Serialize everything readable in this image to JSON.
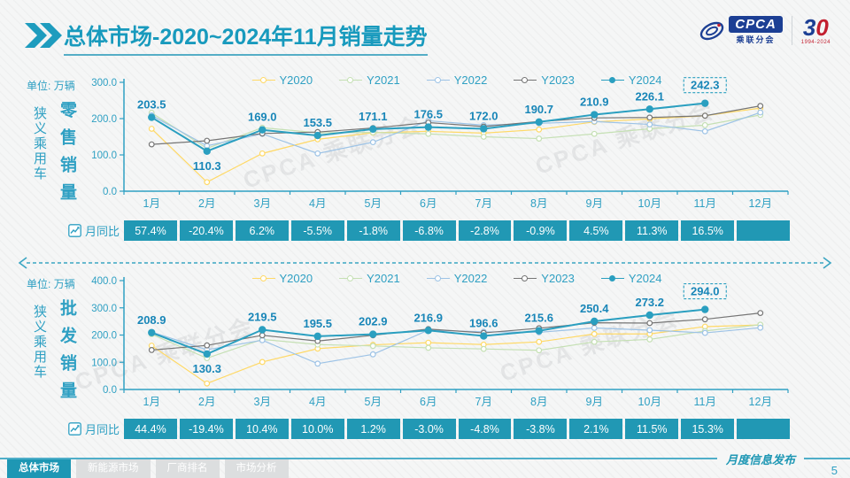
{
  "header": {
    "title": {
      "bold": "总体市场",
      "rest": "-2020~2024年11月销量走势"
    },
    "cpca_logo": {
      "text": "CPCA",
      "subtext": "乘联分会"
    },
    "anniversary_logo": {
      "number_blue": "3",
      "number_red": "0",
      "years": "1994-2024"
    }
  },
  "colors": {
    "primary": "#189ABD",
    "axis": "#2FA0C3",
    "data_label": "#1886B8",
    "yoy_bg": "#2198B4",
    "series": {
      "Y2020": "#FFD966",
      "Y2021": "#C5E0B4",
      "Y2022": "#9DC3E6",
      "Y2023": "#757575",
      "Y2024": "#2A9FC0"
    }
  },
  "chart_data": [
    {
      "type": "line",
      "title": "零售销量",
      "group_label": "狭义乘用车",
      "unit_label": "单位:",
      "unit_value": "万辆",
      "categories": [
        "1月",
        "2月",
        "3月",
        "4月",
        "5月",
        "6月",
        "7月",
        "8月",
        "9月",
        "10月",
        "11月",
        "12月"
      ],
      "ylim": [
        0,
        300
      ],
      "y_tick_step": 100,
      "grid": false,
      "legend_position": "top",
      "series": [
        {
          "name": "Y2020",
          "values": [
            172,
            25,
            104,
            143,
            161,
            165,
            160,
            170,
            191,
            199,
            208,
            229
          ]
        },
        {
          "name": "Y2021",
          "values": [
            216,
            118,
            175,
            161,
            162,
            158,
            150,
            145,
            158,
            172,
            182,
            210
          ]
        },
        {
          "name": "Y2022",
          "values": [
            209,
            125,
            158,
            104,
            135,
            194,
            182,
            187,
            192,
            184,
            165,
            217
          ]
        },
        {
          "name": "Y2023",
          "values": [
            129,
            139,
            159,
            163,
            174,
            189,
            178,
            192,
            202,
            203,
            208,
            235
          ]
        },
        {
          "name": "Y2024",
          "values": [
            203.5,
            110.3,
            169.0,
            153.5,
            171.1,
            176.5,
            172.0,
            190.7,
            210.9,
            226.1,
            242.3
          ],
          "labeled": true,
          "last_label_boxed": true
        }
      ],
      "yoy": {
        "label": "月同比",
        "values": [
          "57.4%",
          "-20.4%",
          "6.2%",
          "-5.5%",
          "-1.8%",
          "-6.8%",
          "-2.8%",
          "-0.9%",
          "4.5%",
          "11.3%",
          "16.5%",
          ""
        ]
      }
    },
    {
      "type": "line",
      "title": "批发销量",
      "group_label": "狭义乘用车",
      "unit_label": "单位:",
      "unit_value": "万辆",
      "categories": [
        "1月",
        "2月",
        "3月",
        "4月",
        "5月",
        "6月",
        "7月",
        "8月",
        "9月",
        "10月",
        "11月",
        "12月"
      ],
      "ylim": [
        0,
        400
      ],
      "y_tick_step": 100,
      "grid": false,
      "legend_position": "top",
      "series": [
        {
          "name": "Y2020",
          "values": [
            161,
            22,
            101,
            150,
            164,
            172,
            165,
            175,
            204,
            204,
            231,
            237
          ]
        },
        {
          "name": "Y2021",
          "values": [
            203,
            115,
            184,
            165,
            160,
            153,
            149,
            144,
            175,
            184,
            215,
            238
          ]
        },
        {
          "name": "Y2022",
          "values": [
            211,
            146,
            181,
            95,
            129,
            218,
            212,
            210,
            226,
            218,
            208,
            227
          ]
        },
        {
          "name": "Y2023",
          "values": [
            145,
            162,
            199,
            178,
            199,
            222,
            208,
            225,
            245,
            244,
            258,
            281
          ]
        },
        {
          "name": "Y2024",
          "values": [
            208.9,
            130.3,
            219.5,
            195.5,
            202.9,
            216.9,
            196.6,
            215.6,
            250.4,
            273.2,
            294.0
          ],
          "labeled": true,
          "last_label_boxed": true
        }
      ],
      "yoy": {
        "label": "月同比",
        "values": [
          "44.4%",
          "-19.4%",
          "10.4%",
          "10.0%",
          "1.2%",
          "-3.0%",
          "-4.8%",
          "-3.8%",
          "2.1%",
          "11.5%",
          "15.3%",
          ""
        ]
      }
    }
  ],
  "watermark": "CPCA 乘联分会",
  "footer": {
    "tabs": [
      {
        "label": "总体市场",
        "active": true
      },
      {
        "label": "新能源市场",
        "active": false
      },
      {
        "label": "厂商排名",
        "active": false
      },
      {
        "label": "市场分析",
        "active": false
      }
    ],
    "release_label": "月度信息发布",
    "page_number": "5"
  }
}
